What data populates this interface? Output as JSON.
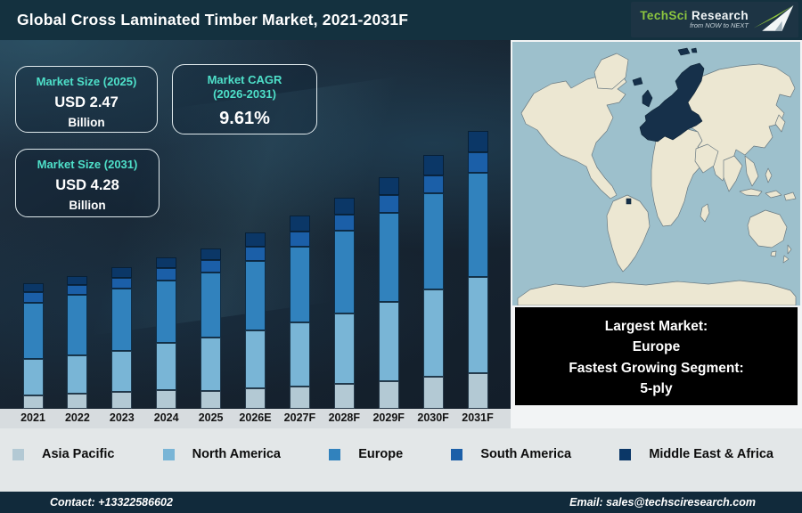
{
  "header": {
    "title": "Global Cross Laminated Timber Market, 2021-2031F",
    "logo": {
      "brand_primary": "TechSci",
      "brand_secondary": "Research",
      "tagline": "from NOW to NEXT",
      "brand_green": "#8dc63f"
    }
  },
  "info_boxes": {
    "market_size_2025": {
      "title": "Market Size (2025)",
      "value": "USD 2.47",
      "unit": "Billion"
    },
    "market_cagr": {
      "title": "Market CAGR",
      "subtitle": "(2026-2031)",
      "value": "9.61%"
    },
    "market_size_2031": {
      "title": "Market Size (2031)",
      "value": "USD 4.28",
      "unit": "Billion"
    }
  },
  "chart_data": {
    "type": "bar",
    "stacked": true,
    "unit": "USD Billion",
    "categories": [
      "2021",
      "2022",
      "2023",
      "2024",
      "2025",
      "2026E",
      "2027F",
      "2028F",
      "2029F",
      "2030F",
      "2031F"
    ],
    "series": [
      {
        "name": "Asia Pacific",
        "color": "#b3c9d4",
        "values": [
          0.21,
          0.23,
          0.26,
          0.29,
          0.28,
          0.31,
          0.34,
          0.38,
          0.43,
          0.49,
          0.55
        ]
      },
      {
        "name": "North America",
        "color": "#79b5d6",
        "values": [
          0.56,
          0.59,
          0.63,
          0.72,
          0.82,
          0.9,
          0.99,
          1.09,
          1.21,
          1.34,
          1.48
        ]
      },
      {
        "name": "Europe",
        "color": "#3182bd",
        "values": [
          0.86,
          0.93,
          0.96,
          0.96,
          1.0,
          1.07,
          1.16,
          1.27,
          1.38,
          1.48,
          1.6
        ]
      },
      {
        "name": "South America",
        "color": "#1b5fa8",
        "values": [
          0.16,
          0.16,
          0.17,
          0.19,
          0.19,
          0.22,
          0.24,
          0.25,
          0.27,
          0.28,
          0.31
        ]
      },
      {
        "name": "Middle East & Africa",
        "color": "#0b3767",
        "values": [
          0.14,
          0.13,
          0.16,
          0.17,
          0.18,
          0.21,
          0.24,
          0.26,
          0.27,
          0.31,
          0.34
        ]
      }
    ],
    "ylim": [
      0,
      4.5
    ],
    "grid": false,
    "legend_position": "bottom"
  },
  "map": {
    "highlighted_region": "Europe",
    "colors": {
      "ocean": "#9dc0cc",
      "land": "#ece7d2",
      "outline": "#6a7a82",
      "highlight": "#16304a"
    }
  },
  "highlight_box": {
    "line1": "Largest Market:",
    "line2": "Europe",
    "line3": "Fastest Growing Segment:",
    "line4": "5-ply"
  },
  "footer": {
    "contact": "Contact: +13322586602",
    "email": "Email: sales@techsciresearch.com"
  }
}
